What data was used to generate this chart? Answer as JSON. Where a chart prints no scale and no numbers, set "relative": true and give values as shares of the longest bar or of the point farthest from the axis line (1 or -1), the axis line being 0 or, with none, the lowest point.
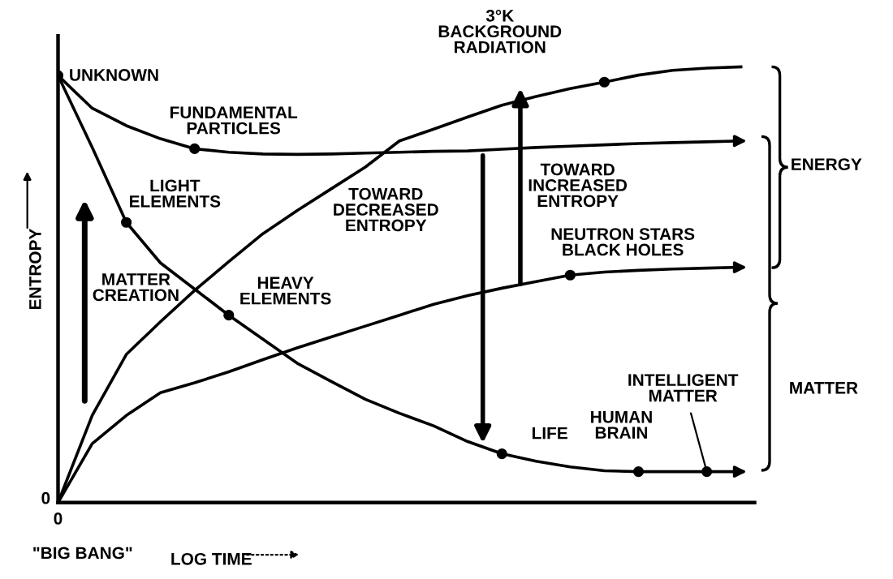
{
  "chart_data": {
    "type": "line",
    "relative": true,
    "xlabel": "LOG TIME",
    "ylabel": "ENTROPY",
    "legend": false,
    "marker": "none",
    "line_style": "solid",
    "categories": [
      null,
      null,
      null,
      null,
      null,
      null,
      null,
      null,
      null,
      null,
      null,
      null,
      null,
      null,
      null,
      null,
      null,
      null,
      null,
      null,
      null
    ],
    "series": [
      {
        "color": "#000000",
        "values": [
          0,
          0.2,
          0.34,
          0.415,
          0.487,
          0.553,
          0.617,
          0.67,
          0.72,
          0.77,
          0.83,
          0.857,
          0.885,
          0.912,
          0.932,
          0.95,
          0.965,
          0.981,
          0.992,
          0.997,
          1
        ]
      },
      {
        "color": "#000000",
        "values": [
          0.98,
          0.905,
          0.865,
          0.835,
          0.812,
          0.804,
          0.8,
          0.799,
          0.8,
          0.802,
          0.804,
          0.806,
          0.807,
          0.811,
          0.815,
          0.818,
          0.821,
          0.824,
          0.826,
          0.828,
          0.83
        ]
      },
      {
        "color": "#000000",
        "values": [
          0.98,
          0.815,
          0.643,
          0.55,
          0.49,
          0.43,
          0.375,
          0.32,
          0.278,
          0.237,
          0.205,
          0.176,
          0.14,
          0.112,
          0.095,
          0.082,
          0.073,
          0.071,
          0.071,
          0.071,
          0.071
        ]
      },
      {
        "color": "#000000",
        "values": [
          0,
          0.135,
          0.2,
          0.252,
          0.275,
          0.3,
          0.328,
          0.355,
          0.38,
          0.405,
          0.43,
          0.455,
          0.475,
          0.492,
          0.507,
          0.522,
          0.529,
          0.533,
          0.536,
          0.538,
          0.54
        ]
      }
    ],
    "annotations": [
      "UNKNOWN",
      "FUNDAMENTAL\nPARTICLES",
      "LIGHT\nELEMENTS",
      "MATTER\nCREATION",
      "HEAVY\nELEMENTS",
      "TOWARD\nDECREASED\nENTROPY",
      "TOWARD\nINCREASED\nENTROPY",
      "NEUTRON STARS\nBLACK HOLES",
      "3°K\nBACKGROUND\nRADIATION",
      "LIFE",
      "HUMAN\nBRAIN",
      "INTELLIGENT\nMATTER",
      "ENERGY",
      "MATTER",
      "\"BIG BANG\"",
      "0",
      "0"
    ]
  }
}
